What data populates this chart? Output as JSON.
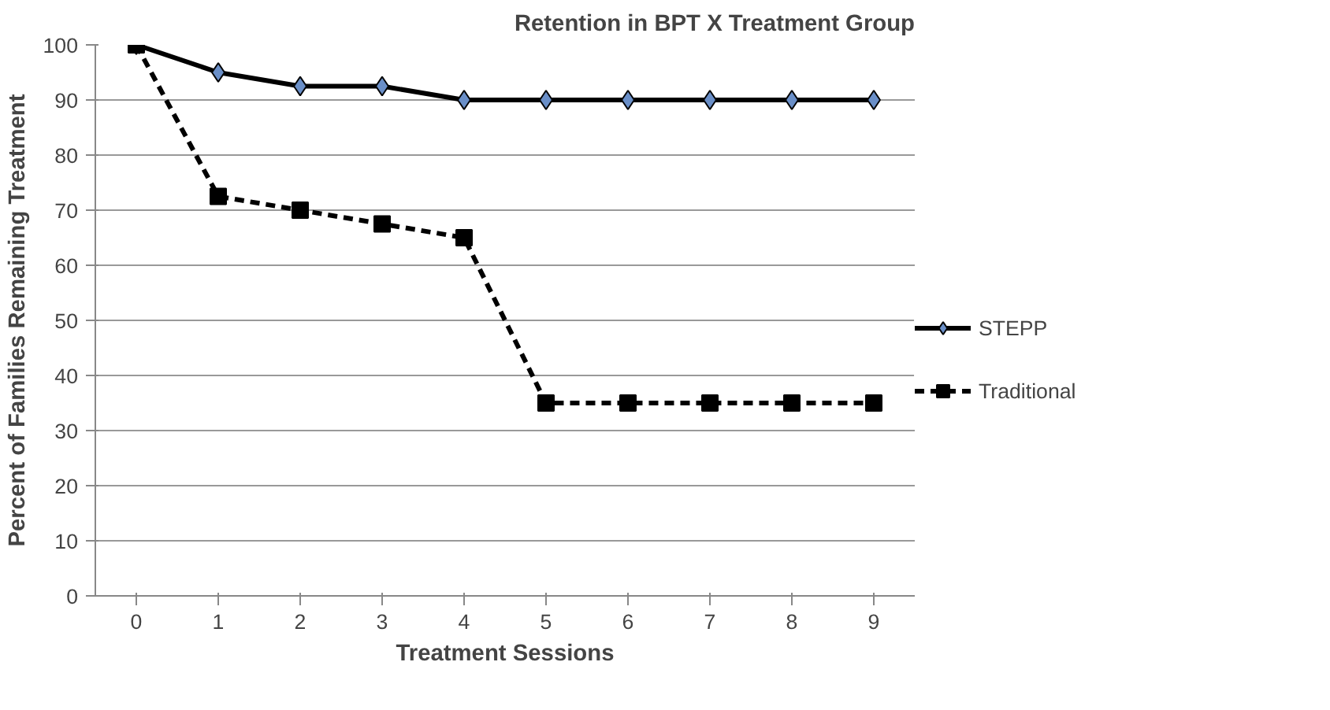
{
  "chart_data": {
    "type": "line",
    "title": "Retention in BPT X Treatment Group",
    "xlabel": "Treatment Sessions",
    "ylabel": "Percent of Families Remaining Treatment",
    "categories": [
      "0",
      "1",
      "2",
      "3",
      "4",
      "5",
      "6",
      "7",
      "8",
      "9"
    ],
    "series": [
      {
        "name": "STEPP",
        "color": "#000000",
        "marker": "diamond",
        "colors": [
          "#6a8fc8",
          "#6a8fc8",
          "#6a8fc8",
          "#6a8fc8",
          "#6a8fc8",
          "#6a8fc8",
          "#6a8fc8",
          "#6a8fc8",
          "#6a8fc8",
          "#6a8fc8"
        ],
        "line_style": "solid",
        "values": [
          100,
          95,
          92.5,
          92.5,
          90,
          90,
          90,
          90,
          90,
          90
        ]
      },
      {
        "name": "Traditional",
        "color": "#000000",
        "marker": "square",
        "line_style": "dashed",
        "values": [
          100,
          72.5,
          70,
          67.5,
          65,
          35,
          35,
          35,
          35,
          35
        ]
      }
    ],
    "ylim": [
      0,
      100
    ],
    "yticks": [
      0,
      10,
      20,
      30,
      40,
      50,
      60,
      70,
      80,
      90,
      100
    ],
    "grid": "y",
    "legend": "right"
  }
}
